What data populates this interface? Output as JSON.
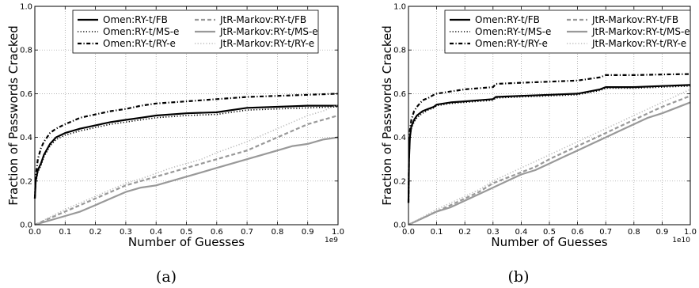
{
  "captions": [
    "(a)",
    "(b)"
  ],
  "chart_data": [
    {
      "type": "line",
      "caption": "(a)",
      "xlabel": "Number of Guesses",
      "ylabel": "Fraction of Passwords Cracked",
      "x_offset_text": "1e9",
      "xlim": [
        0.0,
        1.0
      ],
      "ylim": [
        0.0,
        1.0
      ],
      "x_ticks": [
        "0.0",
        "0.1",
        "0.2",
        "0.3",
        "0.4",
        "0.5",
        "0.6",
        "0.7",
        "0.8",
        "0.9",
        "1.0"
      ],
      "y_ticks": [
        "0.0",
        "0.2",
        "0.4",
        "0.6",
        "0.8",
        "1.0"
      ],
      "grid": true,
      "legend_position": "top",
      "series": [
        {
          "name": "Omen:RY-t/FB",
          "color": "#000000",
          "style": "solid",
          "x": [
            0.0,
            0.003,
            0.01,
            0.02,
            0.03,
            0.05,
            0.07,
            0.1,
            0.15,
            0.2,
            0.25,
            0.3,
            0.35,
            0.4,
            0.5,
            0.6,
            0.7,
            0.8,
            0.9,
            1.0
          ],
          "y": [
            0.12,
            0.2,
            0.25,
            0.28,
            0.32,
            0.37,
            0.4,
            0.42,
            0.44,
            0.455,
            0.47,
            0.48,
            0.49,
            0.5,
            0.51,
            0.515,
            0.535,
            0.54,
            0.545,
            0.545
          ]
        },
        {
          "name": "Omen:RY-t/MS-e",
          "color": "#000000",
          "style": "dotted",
          "x": [
            0.0,
            0.003,
            0.01,
            0.02,
            0.03,
            0.05,
            0.07,
            0.1,
            0.15,
            0.2,
            0.25,
            0.3,
            0.35,
            0.4,
            0.5,
            0.6,
            0.7,
            0.8,
            0.9,
            1.0
          ],
          "y": [
            0.12,
            0.19,
            0.24,
            0.27,
            0.31,
            0.36,
            0.39,
            0.41,
            0.43,
            0.445,
            0.46,
            0.47,
            0.48,
            0.49,
            0.5,
            0.505,
            0.525,
            0.53,
            0.535,
            0.54
          ]
        },
        {
          "name": "Omen:RY-t/RY-e",
          "color": "#000000",
          "style": "dashdot",
          "x": [
            0.0,
            0.003,
            0.01,
            0.02,
            0.03,
            0.05,
            0.07,
            0.1,
            0.15,
            0.2,
            0.25,
            0.3,
            0.35,
            0.4,
            0.5,
            0.6,
            0.7,
            0.8,
            0.9,
            1.0
          ],
          "y": [
            0.12,
            0.22,
            0.3,
            0.35,
            0.38,
            0.42,
            0.44,
            0.46,
            0.49,
            0.505,
            0.52,
            0.53,
            0.545,
            0.555,
            0.565,
            0.575,
            0.585,
            0.59,
            0.595,
            0.6
          ]
        },
        {
          "name": "JtR-Markov:RY-t/FB",
          "color": "#999999",
          "style": "dashed",
          "x": [
            0.0,
            0.05,
            0.1,
            0.15,
            0.2,
            0.25,
            0.3,
            0.35,
            0.4,
            0.45,
            0.5,
            0.55,
            0.6,
            0.65,
            0.7,
            0.75,
            0.8,
            0.85,
            0.9,
            0.95,
            1.0
          ],
          "y": [
            0.0,
            0.03,
            0.06,
            0.09,
            0.12,
            0.15,
            0.18,
            0.2,
            0.22,
            0.24,
            0.26,
            0.28,
            0.3,
            0.32,
            0.34,
            0.37,
            0.4,
            0.43,
            0.46,
            0.48,
            0.5
          ]
        },
        {
          "name": "JtR-Markov:RY-t/MS-e",
          "color": "#999999",
          "style": "solid",
          "x": [
            0.0,
            0.05,
            0.1,
            0.15,
            0.2,
            0.25,
            0.3,
            0.35,
            0.4,
            0.45,
            0.5,
            0.55,
            0.6,
            0.65,
            0.7,
            0.75,
            0.8,
            0.85,
            0.9,
            0.95,
            1.0
          ],
          "y": [
            0.0,
            0.02,
            0.04,
            0.06,
            0.09,
            0.12,
            0.15,
            0.17,
            0.18,
            0.2,
            0.22,
            0.24,
            0.26,
            0.28,
            0.3,
            0.32,
            0.34,
            0.36,
            0.37,
            0.39,
            0.4
          ]
        },
        {
          "name": "JtR-Markov:RY-t/RY-e",
          "color": "#bbbbbb",
          "style": "dotted",
          "x": [
            0.0,
            0.05,
            0.1,
            0.15,
            0.2,
            0.25,
            0.3,
            0.35,
            0.4,
            0.45,
            0.5,
            0.55,
            0.6,
            0.65,
            0.7,
            0.75,
            0.8,
            0.85,
            0.9,
            0.95,
            1.0
          ],
          "y": [
            0.0,
            0.035,
            0.07,
            0.1,
            0.13,
            0.16,
            0.19,
            0.21,
            0.235,
            0.26,
            0.28,
            0.3,
            0.33,
            0.355,
            0.38,
            0.41,
            0.44,
            0.47,
            0.5,
            0.52,
            0.55
          ]
        }
      ]
    },
    {
      "type": "line",
      "caption": "(b)",
      "xlabel": "Number of Guesses",
      "ylabel": "Fraction of Passwords Cracked",
      "x_offset_text": "1e10",
      "xlim": [
        0.0,
        1.0
      ],
      "ylim": [
        0.0,
        1.0
      ],
      "x_ticks": [
        "0.0",
        "0.1",
        "0.2",
        "0.3",
        "0.4",
        "0.5",
        "0.6",
        "0.7",
        "0.8",
        "0.9",
        "1.0"
      ],
      "y_ticks": [
        "0.0",
        "0.2",
        "0.4",
        "0.6",
        "0.8",
        "1.0"
      ],
      "grid": true,
      "legend_position": "top",
      "series": [
        {
          "name": "Omen:RY-t/FB",
          "color": "#000000",
          "style": "solid",
          "x": [
            0.0,
            0.002,
            0.005,
            0.01,
            0.02,
            0.03,
            0.05,
            0.07,
            0.09,
            0.1,
            0.15,
            0.2,
            0.25,
            0.3,
            0.31,
            0.4,
            0.5,
            0.6,
            0.68,
            0.7,
            0.8,
            0.9,
            1.0
          ],
          "y": [
            0.1,
            0.3,
            0.4,
            0.45,
            0.48,
            0.5,
            0.52,
            0.53,
            0.54,
            0.55,
            0.56,
            0.565,
            0.57,
            0.575,
            0.585,
            0.59,
            0.595,
            0.6,
            0.62,
            0.63,
            0.63,
            0.635,
            0.64
          ]
        },
        {
          "name": "Omen:RY-t/MS-e",
          "color": "#000000",
          "style": "dotted",
          "x": [
            0.0,
            0.002,
            0.005,
            0.01,
            0.02,
            0.03,
            0.05,
            0.07,
            0.09,
            0.1,
            0.15,
            0.2,
            0.25,
            0.3,
            0.31,
            0.4,
            0.5,
            0.6,
            0.68,
            0.7,
            0.8,
            0.9,
            1.0
          ],
          "y": [
            0.1,
            0.29,
            0.39,
            0.44,
            0.47,
            0.49,
            0.51,
            0.525,
            0.535,
            0.545,
            0.555,
            0.56,
            0.565,
            0.57,
            0.58,
            0.585,
            0.59,
            0.595,
            0.615,
            0.625,
            0.625,
            0.63,
            0.635
          ]
        },
        {
          "name": "Omen:RY-t/RY-e",
          "color": "#000000",
          "style": "dashdot",
          "x": [
            0.0,
            0.002,
            0.005,
            0.01,
            0.02,
            0.03,
            0.05,
            0.07,
            0.09,
            0.1,
            0.15,
            0.2,
            0.25,
            0.3,
            0.31,
            0.4,
            0.5,
            0.6,
            0.68,
            0.7,
            0.8,
            0.9,
            1.0
          ],
          "y": [
            0.1,
            0.33,
            0.43,
            0.48,
            0.52,
            0.54,
            0.57,
            0.58,
            0.595,
            0.6,
            0.61,
            0.62,
            0.625,
            0.63,
            0.645,
            0.65,
            0.655,
            0.66,
            0.675,
            0.685,
            0.685,
            0.688,
            0.69
          ]
        },
        {
          "name": "JtR-Markov:RY-t/FB",
          "color": "#999999",
          "style": "dashed",
          "x": [
            0.0,
            0.05,
            0.1,
            0.15,
            0.2,
            0.25,
            0.3,
            0.35,
            0.4,
            0.45,
            0.5,
            0.55,
            0.6,
            0.65,
            0.7,
            0.75,
            0.8,
            0.85,
            0.9,
            0.95,
            1.0
          ],
          "y": [
            0.0,
            0.03,
            0.06,
            0.09,
            0.12,
            0.15,
            0.19,
            0.215,
            0.24,
            0.265,
            0.3,
            0.33,
            0.36,
            0.39,
            0.42,
            0.45,
            0.48,
            0.51,
            0.54,
            0.565,
            0.59
          ]
        },
        {
          "name": "JtR-Markov:RY-t/MS-e",
          "color": "#999999",
          "style": "solid",
          "x": [
            0.0,
            0.05,
            0.1,
            0.15,
            0.2,
            0.25,
            0.3,
            0.35,
            0.4,
            0.45,
            0.5,
            0.55,
            0.6,
            0.65,
            0.7,
            0.75,
            0.8,
            0.85,
            0.9,
            0.95,
            1.0
          ],
          "y": [
            0.0,
            0.03,
            0.06,
            0.08,
            0.11,
            0.14,
            0.17,
            0.2,
            0.23,
            0.25,
            0.28,
            0.31,
            0.34,
            0.37,
            0.4,
            0.43,
            0.46,
            0.49,
            0.51,
            0.535,
            0.56
          ]
        },
        {
          "name": "JtR-Markov:RY-t/RY-e",
          "color": "#bbbbbb",
          "style": "dotted",
          "x": [
            0.0,
            0.05,
            0.1,
            0.15,
            0.2,
            0.25,
            0.3,
            0.35,
            0.4,
            0.45,
            0.5,
            0.55,
            0.6,
            0.65,
            0.7,
            0.75,
            0.8,
            0.85,
            0.9,
            0.95,
            1.0
          ],
          "y": [
            0.0,
            0.035,
            0.07,
            0.1,
            0.13,
            0.16,
            0.2,
            0.23,
            0.26,
            0.29,
            0.32,
            0.35,
            0.38,
            0.41,
            0.44,
            0.47,
            0.5,
            0.53,
            0.56,
            0.59,
            0.62
          ]
        }
      ]
    }
  ]
}
